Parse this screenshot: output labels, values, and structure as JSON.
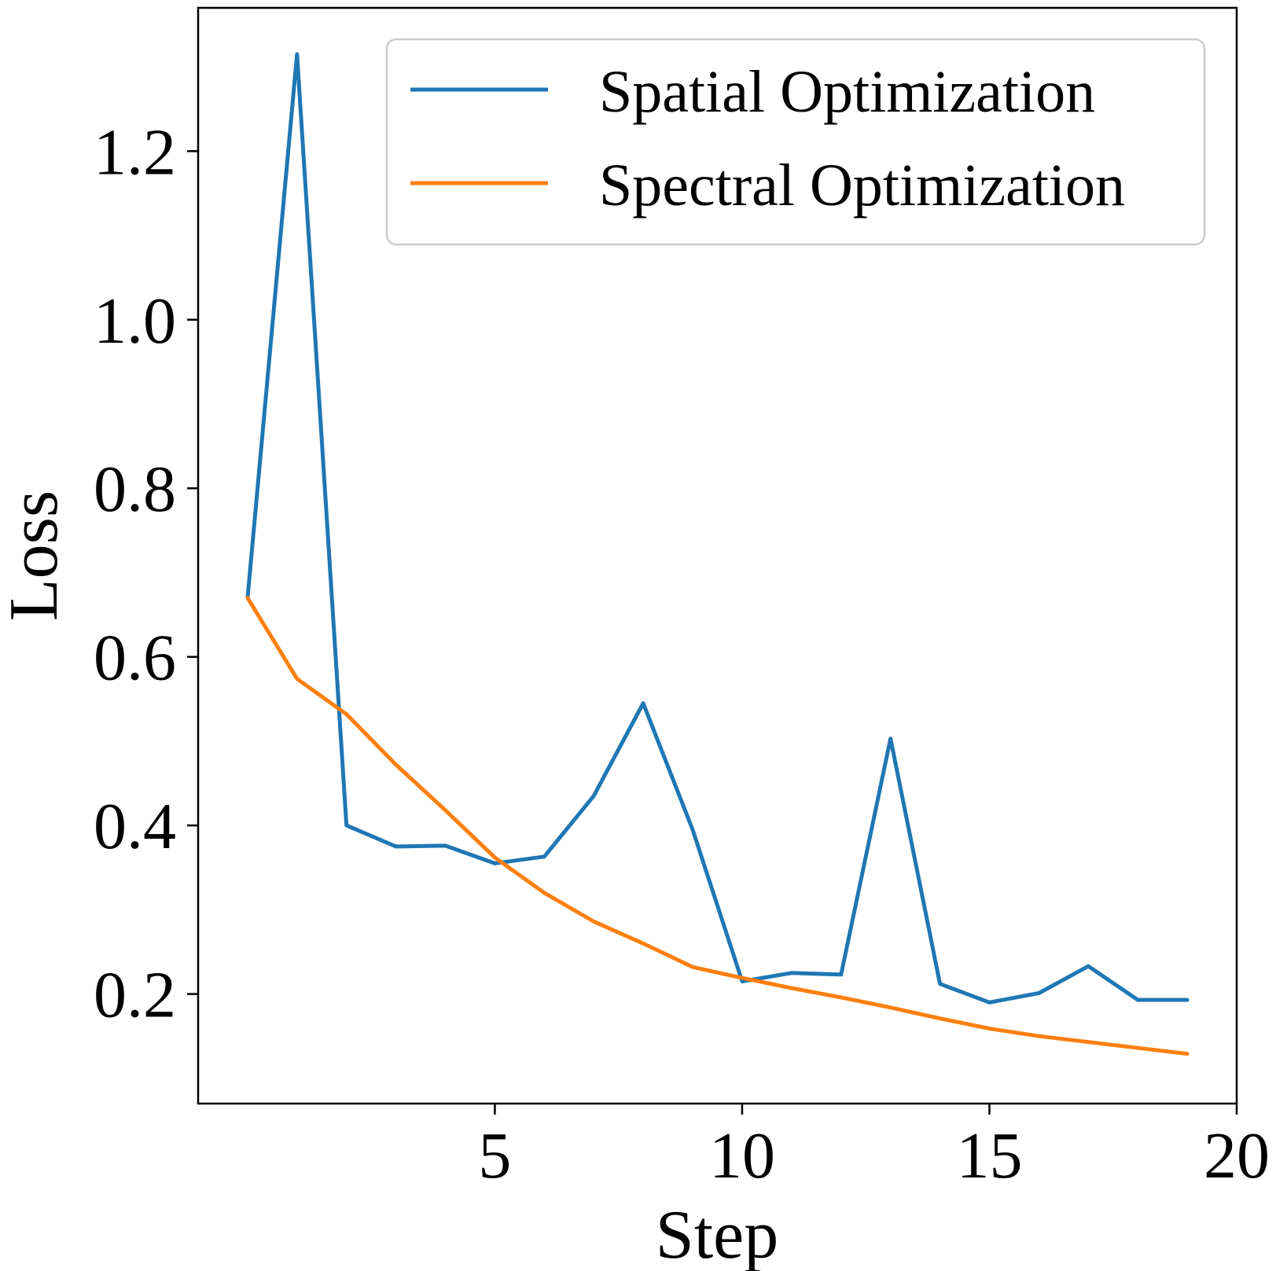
{
  "chart_data": {
    "type": "line",
    "title": "",
    "xlabel": "Step",
    "ylabel": "Loss",
    "xlim": [
      -1,
      20
    ],
    "ylim": [
      0.07,
      1.37
    ],
    "xticks": [
      5,
      10,
      15,
      20
    ],
    "yticks": [
      0.2,
      0.4,
      0.6,
      0.8,
      1.0,
      1.2
    ],
    "xtick_labels": [
      "5",
      "10",
      "15",
      "20"
    ],
    "ytick_labels": [
      "0.2",
      "0.4",
      "0.6",
      "0.8",
      "1.0",
      "1.2"
    ],
    "grid": false,
    "legend_position": "top-right",
    "x": [
      0,
      1,
      2,
      3,
      4,
      5,
      6,
      7,
      8,
      9,
      10,
      11,
      12,
      13,
      14,
      15,
      16,
      17,
      18,
      19
    ],
    "series": [
      {
        "name": "Spatial Optimization",
        "color": "#1f77b4",
        "values": [
          0.67,
          1.315,
          0.4,
          0.375,
          0.376,
          0.355,
          0.363,
          0.435,
          0.545,
          0.395,
          0.215,
          0.225,
          0.223,
          0.503,
          0.212,
          0.19,
          0.201,
          0.233,
          0.193,
          0.193
        ]
      },
      {
        "name": "Spectral Optimization",
        "color": "#ff7f0e",
        "values": [
          0.67,
          0.574,
          0.532,
          0.472,
          0.418,
          0.362,
          0.32,
          0.286,
          0.26,
          0.232,
          0.219,
          0.207,
          0.196,
          0.184,
          0.171,
          0.159,
          0.15,
          0.143,
          0.136,
          0.129
        ]
      }
    ]
  }
}
